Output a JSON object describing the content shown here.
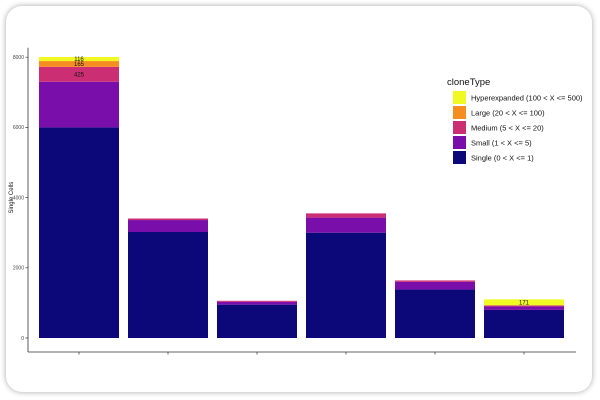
{
  "chart_data": {
    "type": "bar",
    "stacked": true,
    "title": "",
    "xlabel": "",
    "ylabel": "Single Cells",
    "ylim": [
      0,
      8100
    ],
    "yticks": [
      0,
      2000,
      4000,
      6000,
      8000
    ],
    "grid": false,
    "legend": {
      "title": "cloneType",
      "placement": "right",
      "entries": [
        {
          "name": "Hyperexpanded (100 < X <= 500)",
          "color": "#f0f921"
        },
        {
          "name": "Large (20 < X <= 100)",
          "color": "#f68d21"
        },
        {
          "name": "Medium (5 < X <= 20)",
          "color": "#cc2e73"
        },
        {
          "name": "Small (1 < X <= 5)",
          "color": "#7a0eaa"
        },
        {
          "name": "Single (0 < X <= 1)",
          "color": "#0d0879"
        }
      ]
    },
    "categories": [
      "",
      "",
      "",
      "",
      "",
      ""
    ],
    "series": [
      {
        "name": "Single (0 < X <= 1)",
        "color": "#0d0879",
        "values": [
          6000,
          3020,
          950,
          3000,
          1380,
          800
        ],
        "labels": [
          "",
          "",
          "",
          "",
          "",
          ""
        ]
      },
      {
        "name": "Small (1 < X <= 5)",
        "color": "#7a0eaa",
        "values": [
          1300,
          340,
          80,
          430,
          220,
          100
        ],
        "labels": [
          "",
          "",
          "",
          "",
          "",
          ""
        ]
      },
      {
        "name": "Medium (5 < X <= 20)",
        "color": "#cc2e73",
        "values": [
          425,
          45,
          30,
          120,
          40,
          30
        ],
        "labels": [
          "425",
          "",
          "",
          "",
          "",
          ""
        ]
      },
      {
        "name": "Large (20 < X <= 100)",
        "color": "#f68d21",
        "values": [
          165,
          0,
          0,
          0,
          0,
          0
        ],
        "labels": [
          "165",
          "",
          "",
          "",
          "",
          ""
        ]
      },
      {
        "name": "Hyperexpanded (100 < X <= 500)",
        "color": "#f0f921",
        "values": [
          116,
          0,
          0,
          0,
          0,
          171
        ],
        "labels": [
          "116",
          "",
          "",
          "",
          "",
          "171"
        ]
      }
    ]
  }
}
